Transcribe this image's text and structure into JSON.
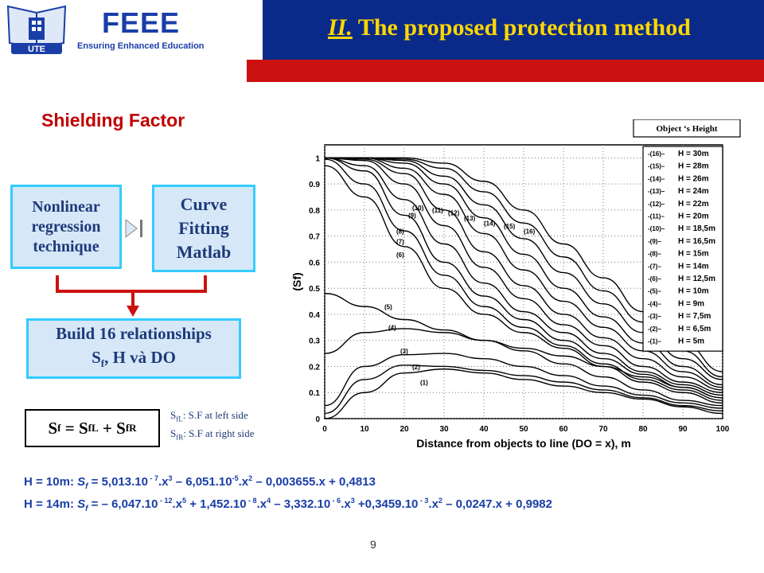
{
  "header": {
    "brand": "FEEE",
    "brand_sub": "Ensuring Enhanced Education",
    "logo_text": "UTE",
    "title_num": "II.",
    "title_text": "The proposed protection method"
  },
  "subtitle": "Shielding Factor",
  "flow": {
    "box1": [
      "Nonlinear",
      "regression",
      "technique"
    ],
    "box2": [
      "Curve",
      "Fitting",
      "Matlab"
    ],
    "box3_line1": "Build 16 relationships",
    "box3_line2_s": "S",
    "box3_line2_sub": "f",
    "box3_line2_rest": ", H và DO",
    "equation": {
      "lhs": "S",
      "lhs_sub": "f",
      "eq": " = S",
      "a_sub": "fL",
      "plus": " + S",
      "b_sub": "fR"
    },
    "note_left": {
      "s": "S",
      "sub": "fL",
      "text": ": S.F at left side"
    },
    "note_right": {
      "s": "S",
      "sub": "fR",
      "text": ": S.F at right side"
    }
  },
  "formulas": {
    "f1": "H = 10m: S_f = 5,013.10 - 7.x3 – 6,051.10-5.x2 – 0,003655.x + 0,4813",
    "f2": "H = 14m: S_f = – 6,047.10 - 12.x5 + 1,452.10 - 8.x4 – 3,332.10 - 6.x3 +0,3459.10 - 3.x2 – 0,0247.x + 0,9982"
  },
  "page_number": "9",
  "colors": {
    "header_blue": "#0a2a8a",
    "red": "#cc1111",
    "title_yellow": "#ffd700",
    "box_fill": "#d6e8f7",
    "box_border": "#33ccff",
    "text_blue": "#1a3ea8"
  },
  "chart_data": {
    "type": "line",
    "xlabel": "Distance from objects to line (DO = x), m",
    "ylabel": "(S_f)",
    "xlim": [
      0,
      100
    ],
    "ylim": [
      0,
      1.05
    ],
    "xticks": [
      "0",
      "10",
      "20",
      "30",
      "40",
      "50",
      "60",
      "70",
      "80",
      "90",
      "100"
    ],
    "yticks": [
      "0",
      "0.1",
      "0.2",
      "0.3",
      "0.4",
      "0.5",
      "0.6",
      "0.7",
      "0.8",
      "0.9",
      "1"
    ],
    "grid": true,
    "legend_title": "Object ‘s Height",
    "legend_position": "top-right",
    "series": [
      {
        "name": "H = 5m",
        "label": "(1)",
        "x": [
          0,
          10,
          20,
          30,
          40,
          50,
          60,
          70,
          80,
          90,
          100
        ],
        "y": [
          0.0,
          0.1,
          0.175,
          0.19,
          0.175,
          0.15,
          0.125,
          0.1,
          0.075,
          0.045,
          0.02
        ]
      },
      {
        "name": "H = 6,5m",
        "label": "(2)",
        "x": [
          0,
          10,
          20,
          30,
          40,
          50,
          60,
          70,
          80,
          90,
          100
        ],
        "y": [
          0.02,
          0.15,
          0.205,
          0.2,
          0.185,
          0.165,
          0.14,
          0.11,
          0.08,
          0.05,
          0.03
        ]
      },
      {
        "name": "H = 7,5m",
        "label": "(3)",
        "x": [
          0,
          10,
          20,
          30,
          40,
          50,
          60,
          70,
          80,
          90,
          100
        ],
        "y": [
          0.05,
          0.2,
          0.245,
          0.25,
          0.23,
          0.2,
          0.165,
          0.125,
          0.09,
          0.06,
          0.04
        ]
      },
      {
        "name": "H = 9m",
        "label": "(4)",
        "x": [
          0,
          10,
          20,
          30,
          40,
          50,
          60,
          70,
          80,
          90,
          100
        ],
        "y": [
          0.25,
          0.33,
          0.345,
          0.33,
          0.3,
          0.26,
          0.21,
          0.16,
          0.11,
          0.07,
          0.05
        ]
      },
      {
        "name": "H = 10m",
        "label": "(5)",
        "x": [
          0,
          10,
          20,
          30,
          40,
          50,
          60,
          70,
          80,
          90,
          100
        ],
        "y": [
          0.48,
          0.43,
          0.38,
          0.34,
          0.3,
          0.27,
          0.24,
          0.2,
          0.16,
          0.12,
          0.08
        ]
      },
      {
        "name": "H = 12,5m",
        "label": "(6)",
        "x": [
          0,
          10,
          20,
          30,
          40,
          50,
          60,
          70,
          80,
          90,
          100
        ],
        "y": [
          0.97,
          0.85,
          0.66,
          0.5,
          0.4,
          0.33,
          0.27,
          0.2,
          0.14,
          0.1,
          0.06
        ]
      },
      {
        "name": "H = 14m",
        "label": "(7)",
        "x": [
          0,
          10,
          20,
          30,
          40,
          50,
          60,
          70,
          80,
          90,
          100
        ],
        "y": [
          0.995,
          0.9,
          0.72,
          0.55,
          0.43,
          0.35,
          0.28,
          0.21,
          0.15,
          0.11,
          0.07
        ]
      },
      {
        "name": "H = 15m",
        "label": "(8)",
        "x": [
          0,
          10,
          20,
          30,
          40,
          50,
          60,
          70,
          80,
          90,
          100
        ],
        "y": [
          1.0,
          0.95,
          0.78,
          0.6,
          0.47,
          0.38,
          0.3,
          0.23,
          0.17,
          0.12,
          0.08
        ]
      },
      {
        "name": "H = 16,5m",
        "label": "(9)",
        "x": [
          0,
          10,
          20,
          30,
          40,
          50,
          60,
          70,
          80,
          90,
          100
        ],
        "y": [
          1.0,
          0.97,
          0.84,
          0.67,
          0.52,
          0.41,
          0.33,
          0.25,
          0.18,
          0.13,
          0.09
        ]
      },
      {
        "name": "H = 18,5m",
        "label": "(10)",
        "x": [
          0,
          10,
          20,
          30,
          40,
          50,
          60,
          70,
          80,
          90,
          100
        ],
        "y": [
          1.0,
          0.99,
          0.9,
          0.74,
          0.58,
          0.46,
          0.36,
          0.28,
          0.2,
          0.14,
          0.1
        ]
      },
      {
        "name": "H = 20m",
        "label": "(11)",
        "x": [
          0,
          10,
          20,
          30,
          40,
          50,
          60,
          70,
          80,
          90,
          100
        ],
        "y": [
          1.0,
          0.995,
          0.94,
          0.8,
          0.64,
          0.51,
          0.4,
          0.31,
          0.23,
          0.16,
          0.11
        ]
      },
      {
        "name": "H = 22m",
        "label": "(12)",
        "x": [
          0,
          10,
          20,
          30,
          40,
          50,
          60,
          70,
          80,
          90,
          100
        ],
        "y": [
          1.0,
          1.0,
          0.96,
          0.86,
          0.71,
          0.57,
          0.45,
          0.35,
          0.26,
          0.18,
          0.12
        ]
      },
      {
        "name": "H = 24m",
        "label": "(13)",
        "x": [
          0,
          10,
          20,
          30,
          40,
          50,
          60,
          70,
          80,
          90,
          100
        ],
        "y": [
          1.0,
          1.0,
          0.98,
          0.9,
          0.77,
          0.63,
          0.5,
          0.39,
          0.29,
          0.2,
          0.13
        ]
      },
      {
        "name": "H = 26m",
        "label": "(14)",
        "x": [
          0,
          10,
          20,
          30,
          40,
          50,
          60,
          70,
          80,
          90,
          100
        ],
        "y": [
          1.0,
          1.0,
          0.99,
          0.93,
          0.82,
          0.69,
          0.56,
          0.44,
          0.33,
          0.23,
          0.15
        ]
      },
      {
        "name": "H = 28m",
        "label": "(15)",
        "x": [
          0,
          10,
          20,
          30,
          40,
          50,
          60,
          70,
          80,
          90,
          100
        ],
        "y": [
          1.0,
          1.0,
          0.995,
          0.96,
          0.87,
          0.75,
          0.62,
          0.49,
          0.37,
          0.26,
          0.16
        ]
      },
      {
        "name": "H = 30m",
        "label": "(16)",
        "x": [
          0,
          10,
          20,
          30,
          40,
          50,
          60,
          70,
          80,
          90,
          100
        ],
        "y": [
          1.0,
          1.0,
          1.0,
          0.98,
          0.91,
          0.8,
          0.67,
          0.54,
          0.41,
          0.29,
          0.18
        ]
      }
    ]
  }
}
